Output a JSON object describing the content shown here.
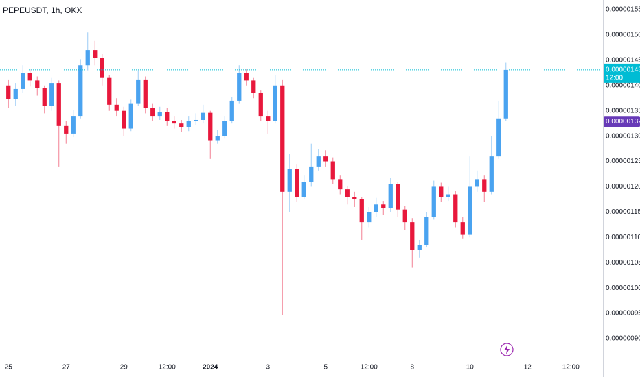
{
  "chart_data": {
    "type": "candlestick",
    "title": "PEPEUSDT, 1h, OKX",
    "x": [
      0,
      6,
      12,
      18,
      24,
      30,
      36,
      42,
      48,
      54,
      60,
      66,
      72,
      78,
      84,
      90,
      96,
      102,
      108,
      114,
      120,
      126,
      132,
      138,
      144,
      150,
      156,
      162,
      168,
      174,
      180,
      186,
      192,
      198,
      204,
      210,
      216,
      222,
      228,
      234,
      240,
      246,
      252,
      258,
      264,
      270,
      276,
      282,
      288,
      294,
      300,
      306,
      312,
      318,
      324,
      330,
      336,
      342,
      348,
      354,
      360,
      366,
      372,
      378,
      384,
      390,
      396,
      402,
      408,
      414
    ],
    "open": [
      1.4e-06,
      1.373e-06,
      1.393e-06,
      1.425e-06,
      1.41e-06,
      1.395e-06,
      1.36e-06,
      1.405e-06,
      1.32e-06,
      1.305e-06,
      1.34e-06,
      1.44e-06,
      1.47e-06,
      1.455e-06,
      1.415e-06,
      1.362e-06,
      1.35e-06,
      1.315e-06,
      1.365e-06,
      1.412e-06,
      1.355e-06,
      1.34e-06,
      1.348e-06,
      1.33e-06,
      1.325e-06,
      1.318e-06,
      1.33e-06,
      1.332e-06,
      1.346e-06,
      1.292e-06,
      1.3e-06,
      1.33e-06,
      1.37e-06,
      1.425e-06,
      1.41e-06,
      1.385e-06,
      1.34e-06,
      1.33e-06,
      1.4e-06,
      1.19e-06,
      1.235e-06,
      1.18e-06,
      1.21e-06,
      1.24e-06,
      1.26e-06,
      1.25e-06,
      1.215e-06,
      1.195e-06,
      1.18e-06,
      1.175e-06,
      1.13e-06,
      1.15e-06,
      1.165e-06,
      1.158e-06,
      1.205e-06,
      1.155e-06,
      1.13e-06,
      1.075e-06,
      1.085e-06,
      1.14e-06,
      1.2e-06,
      1.18e-06,
      1.185e-06,
      1.13e-06,
      1.105e-06,
      1.2e-06,
      1.215e-06,
      1.19e-06,
      1.26e-06,
      1.335e-06
    ],
    "high": [
      1.412e-06,
      1.405e-06,
      1.44e-06,
      1.432e-06,
      1.418e-06,
      1.4e-06,
      1.415e-06,
      1.41e-06,
      1.33e-06,
      1.352e-06,
      1.452e-06,
      1.505e-06,
      1.488e-06,
      1.462e-06,
      1.42e-06,
      1.375e-06,
      1.358e-06,
      1.372e-06,
      1.43e-06,
      1.418e-06,
      1.365e-06,
      1.358e-06,
      1.355e-06,
      1.34e-06,
      1.332e-06,
      1.34e-06,
      1.345e-06,
      1.362e-06,
      1.35e-06,
      1.312e-06,
      1.34e-06,
      1.378e-06,
      1.44e-06,
      1.432e-06,
      1.415e-06,
      1.39e-06,
      1.35e-06,
      1.42e-06,
      1.412e-06,
      1.265e-06,
      1.245e-06,
      1.222e-06,
      1.285e-06,
      1.275e-06,
      1.272e-06,
      1.258e-06,
      1.222e-06,
      1.202e-06,
      1.19e-06,
      1.18e-06,
      1.16e-06,
      1.178e-06,
      1.172e-06,
      1.218e-06,
      1.21e-06,
      1.162e-06,
      1.138e-06,
      1.095e-06,
      1.15e-06,
      1.212e-06,
      1.208e-06,
      1.2e-06,
      1.192e-06,
      1.14e-06,
      1.26e-06,
      1.232e-06,
      1.222e-06,
      1.3e-06,
      1.37e-06,
      1.445e-06
    ],
    "low": [
      1.355e-06,
      1.36e-06,
      1.385e-06,
      1.398e-06,
      1.38e-06,
      1.345e-06,
      1.35e-06,
      1.24e-06,
      1.285e-06,
      1.298e-06,
      1.335e-06,
      1.43e-06,
      1.44e-06,
      1.4e-06,
      1.35e-06,
      1.34e-06,
      1.3e-06,
      1.31e-06,
      1.36e-06,
      1.345e-06,
      1.33e-06,
      1.332e-06,
      1.32e-06,
      1.315e-06,
      1.308e-06,
      1.31e-06,
      1.322e-06,
      1.325e-06,
      1.255e-06,
      1.285e-06,
      1.295e-06,
      1.325e-06,
      1.365e-06,
      1.4e-06,
      1.375e-06,
      1.33e-06,
      1.305e-06,
      1.325e-06,
      9.47e-07,
      1.15e-06,
      1.17e-06,
      1.175e-06,
      1.2e-06,
      1.232e-06,
      1.24e-06,
      1.205e-06,
      1.185e-06,
      1.165e-06,
      1.16e-06,
      1.095e-06,
      1.12e-06,
      1.14e-06,
      1.145e-06,
      1.15e-06,
      1.14e-06,
      1.115e-06,
      1.04e-06,
      1.06e-06,
      1.08e-06,
      1.135e-06,
      1.17e-06,
      1.172e-06,
      1.12e-06,
      1.098e-06,
      1.1e-06,
      1.19e-06,
      1.17e-06,
      1.185e-06,
      1.255e-06,
      1.33e-06
    ],
    "close": [
      1.373e-06,
      1.393e-06,
      1.425e-06,
      1.41e-06,
      1.395e-06,
      1.36e-06,
      1.405e-06,
      1.32e-06,
      1.305e-06,
      1.34e-06,
      1.44e-06,
      1.47e-06,
      1.455e-06,
      1.415e-06,
      1.362e-06,
      1.35e-06,
      1.315e-06,
      1.365e-06,
      1.412e-06,
      1.355e-06,
      1.34e-06,
      1.348e-06,
      1.33e-06,
      1.325e-06,
      1.318e-06,
      1.33e-06,
      1.332e-06,
      1.346e-06,
      1.292e-06,
      1.3e-06,
      1.33e-06,
      1.37e-06,
      1.425e-06,
      1.41e-06,
      1.385e-06,
      1.34e-06,
      1.33e-06,
      1.4e-06,
      1.19e-06,
      1.235e-06,
      1.18e-06,
      1.21e-06,
      1.24e-06,
      1.26e-06,
      1.25e-06,
      1.215e-06,
      1.195e-06,
      1.18e-06,
      1.175e-06,
      1.13e-06,
      1.15e-06,
      1.165e-06,
      1.158e-06,
      1.205e-06,
      1.155e-06,
      1.13e-06,
      1.075e-06,
      1.085e-06,
      1.14e-06,
      1.2e-06,
      1.18e-06,
      1.185e-06,
      1.13e-06,
      1.105e-06,
      1.2e-06,
      1.215e-06,
      1.19e-06,
      1.26e-06,
      1.335e-06,
      1.431e-06
    ],
    "up_color": "#4aa3f0",
    "down_color": "#e8183c",
    "xlim": [
      -7,
      494.7
    ],
    "xticks": [
      {
        "value": 0,
        "label": "25"
      },
      {
        "value": 48,
        "label": "27"
      },
      {
        "value": 96,
        "label": "29"
      },
      {
        "value": 132,
        "label": "12:00"
      },
      {
        "value": 168,
        "label": "2024"
      },
      {
        "value": 216,
        "label": "3"
      },
      {
        "value": 264,
        "label": "5"
      },
      {
        "value": 300,
        "label": "12:00"
      },
      {
        "value": 336,
        "label": "8"
      },
      {
        "value": 384,
        "label": "10"
      },
      {
        "value": 432,
        "label": "12"
      },
      {
        "value": 468,
        "label": "12:00"
      }
    ],
    "ylim": [
      8.62e-07,
      1.569e-06
    ],
    "yticks": [
      {
        "value": 9e-07,
        "label": "0.000000900"
      },
      {
        "value": 9.5e-07,
        "label": "0.000000950"
      },
      {
        "value": 1e-06,
        "label": "0.000001000"
      },
      {
        "value": 1.05e-06,
        "label": "0.000001050"
      },
      {
        "value": 1.1e-06,
        "label": "0.000001100"
      },
      {
        "value": 1.15e-06,
        "label": "0.000001150"
      },
      {
        "value": 1.2e-06,
        "label": "0.000001200"
      },
      {
        "value": 1.25e-06,
        "label": "0.000001250"
      },
      {
        "value": 1.3e-06,
        "label": "0.000001300"
      },
      {
        "value": 1.35e-06,
        "label": "0.000001350"
      },
      {
        "value": 1.4e-06,
        "label": "0.000001400"
      },
      {
        "value": 1.45e-06,
        "label": "0.000001450"
      },
      {
        "value": 1.5e-06,
        "label": "0.000001500"
      },
      {
        "value": 1.55e-06,
        "label": "0.000001550"
      }
    ],
    "grid": false,
    "last_price": {
      "value": 1.431e-06,
      "label": "0.000001431",
      "color": "#00bcd4"
    },
    "countdown": "12:00",
    "marker_price": {
      "value": 1.329e-06,
      "label": "0.000001329",
      "color": "#673ab7"
    }
  }
}
